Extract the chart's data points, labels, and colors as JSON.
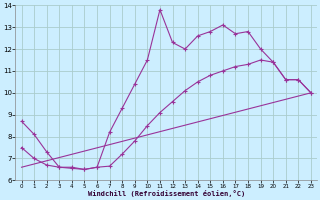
{
  "xlabel": "Windchill (Refroidissement éolien,°C)",
  "background_color": "#cceeff",
  "line_color": "#993399",
  "grid_color": "#aacccc",
  "xlim": [
    -0.5,
    23.5
  ],
  "ylim": [
    6,
    14
  ],
  "xticks": [
    0,
    1,
    2,
    3,
    4,
    5,
    6,
    7,
    8,
    9,
    10,
    11,
    12,
    13,
    14,
    15,
    16,
    17,
    18,
    19,
    20,
    21,
    22,
    23
  ],
  "yticks": [
    6,
    7,
    8,
    9,
    10,
    11,
    12,
    13,
    14
  ],
  "line1_x": [
    0,
    1,
    2,
    3,
    4,
    5,
    6,
    7,
    8,
    9,
    10,
    11,
    12,
    13,
    14,
    15,
    16,
    17,
    18,
    19,
    20,
    21,
    22,
    23
  ],
  "line1_y": [
    8.7,
    8.1,
    7.3,
    6.6,
    6.6,
    6.5,
    6.6,
    8.2,
    9.3,
    10.4,
    11.5,
    13.8,
    12.3,
    12.0,
    12.6,
    12.8,
    13.1,
    12.7,
    12.8,
    12.0,
    11.4,
    10.6,
    10.6,
    10.0
  ],
  "line2_x": [
    0,
    1,
    2,
    3,
    4,
    5,
    6,
    7,
    8,
    9,
    10,
    11,
    12,
    13,
    14,
    15,
    16,
    17,
    18,
    19,
    20,
    21,
    22,
    23
  ],
  "line2_y": [
    7.5,
    7.0,
    6.7,
    6.6,
    6.55,
    6.5,
    6.6,
    6.65,
    7.2,
    7.8,
    8.5,
    9.1,
    9.6,
    10.1,
    10.5,
    10.8,
    11.0,
    11.2,
    11.3,
    11.5,
    11.4,
    10.6,
    10.6,
    10.0
  ],
  "line3_x": [
    0,
    23
  ],
  "line3_y": [
    6.6,
    10.0
  ]
}
